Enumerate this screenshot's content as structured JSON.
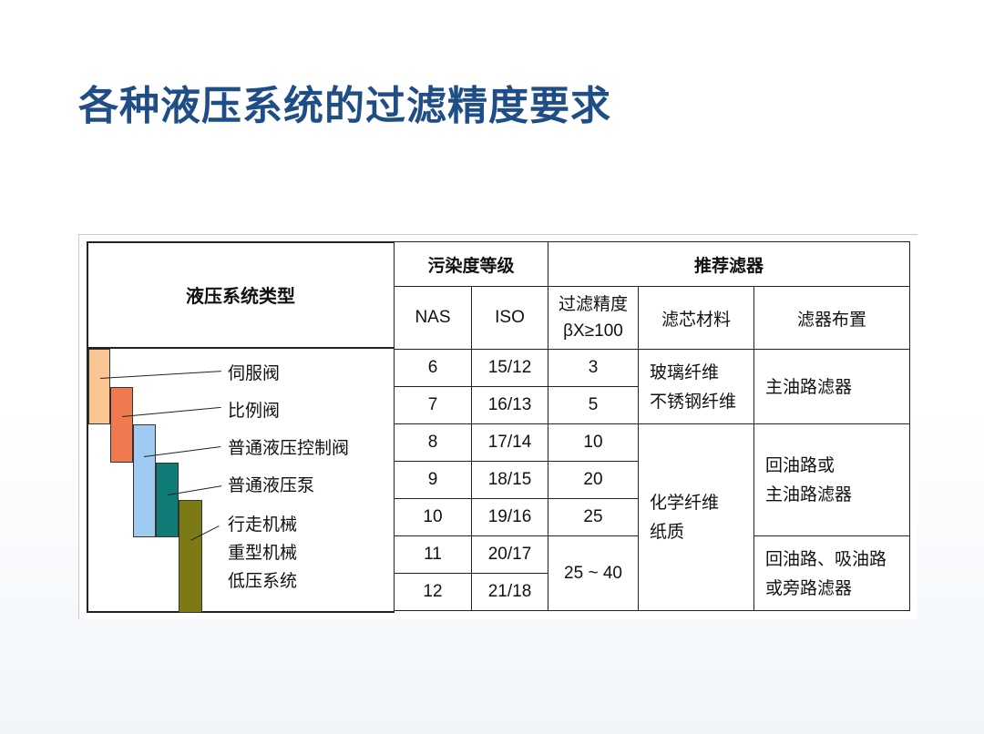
{
  "title": "各种液压系统的过滤精度要求",
  "table": {
    "col_system": "液压系统类型",
    "col_contamination": "污染度等级",
    "col_recommended": "推荐滤器",
    "sub_nas": "NAS",
    "sub_iso": "ISO",
    "sub_precision_line1": "过滤精度",
    "sub_precision_line2": "βX≥100",
    "sub_material": "滤芯材料",
    "sub_arrangement": "滤器布置",
    "rows": [
      {
        "nas": "6",
        "iso": "15/12",
        "precision": "3"
      },
      {
        "nas": "7",
        "iso": "16/13",
        "precision": "5"
      },
      {
        "nas": "8",
        "iso": "17/14",
        "precision": "10"
      },
      {
        "nas": "9",
        "iso": "18/15",
        "precision": "20"
      },
      {
        "nas": "10",
        "iso": "19/16",
        "precision": "25"
      },
      {
        "nas": "11",
        "iso": "20/17"
      },
      {
        "nas": "12",
        "iso": "21/18"
      }
    ],
    "precision_merged": "25 ~ 40",
    "materials": [
      {
        "line1": "玻璃纤维",
        "line2": "不锈钢纤维"
      },
      {
        "line1": "化学纤维",
        "line2": "纸质"
      }
    ],
    "arrangements": [
      {
        "line1": "主油路滤器"
      },
      {
        "line1": "回油路或",
        "line2": "主油路滤器"
      },
      {
        "line1": "回油路、吸油路",
        "line2": "或旁路滤器"
      }
    ]
  },
  "systems": [
    "伺服阀",
    "比例阀",
    "普通液压控制阀",
    "普通液压泵",
    "行走机械",
    "重型机械",
    "低压系统"
  ],
  "bar_colors": [
    "#f9c593",
    "#f07a4f",
    "#9fcaf2",
    "#0e7b76",
    "#7b7a14"
  ]
}
